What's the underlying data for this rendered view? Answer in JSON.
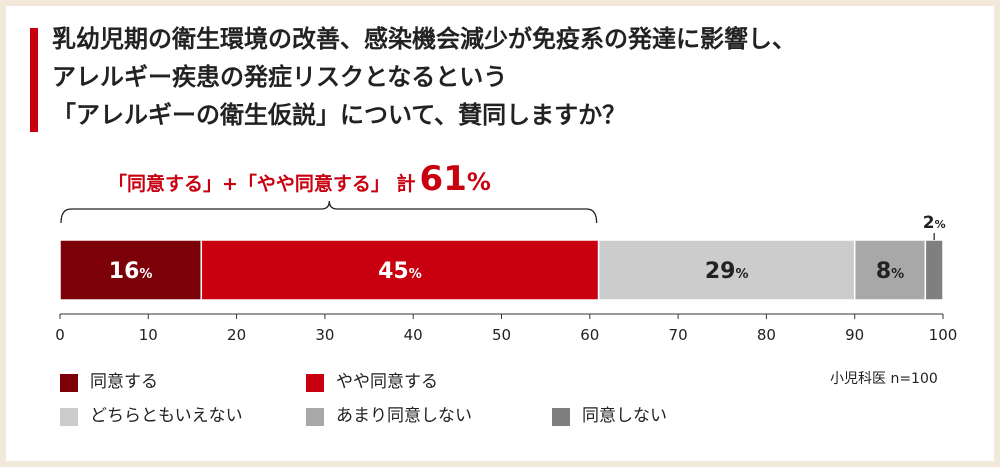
{
  "title_lines": [
    "乳幼児期の衛生環境の改善、感染機会減少が免疫系の発達に影響し、",
    "アレルギー疾患の発症リスクとなるという",
    "「アレルギーの衛生仮説」について、賛同しますか？"
  ],
  "chart_data": {
    "type": "bar",
    "orientation": "horizontal-stacked",
    "categories": [
      "同意する",
      "やや同意する",
      "どちらともいえない",
      "あまり同意しない",
      "同意しない"
    ],
    "values": [
      16,
      45,
      29,
      8,
      2
    ],
    "data_labels": [
      "16%",
      "45%",
      "29%",
      "8%",
      "2%"
    ],
    "colors": [
      "#7c0008",
      "#c8000f",
      "#cccccc",
      "#a8a8a8",
      "#7f7f7f"
    ],
    "label_colors": [
      "#ffffff",
      "#ffffff",
      "#222222",
      "#222222",
      "#222222"
    ],
    "xlim": [
      0,
      100
    ],
    "xticks": [
      0,
      10,
      20,
      30,
      40,
      50,
      60,
      70,
      80,
      90,
      100
    ],
    "legend": "bottom",
    "grid": false
  },
  "annotation": {
    "text_prefix": "「同意する」+「やや同意する」 計",
    "total_value": "61",
    "total_unit": "%",
    "range": [
      0,
      61
    ],
    "color": "#c8000f"
  },
  "source_note": "小児科医 n=100"
}
